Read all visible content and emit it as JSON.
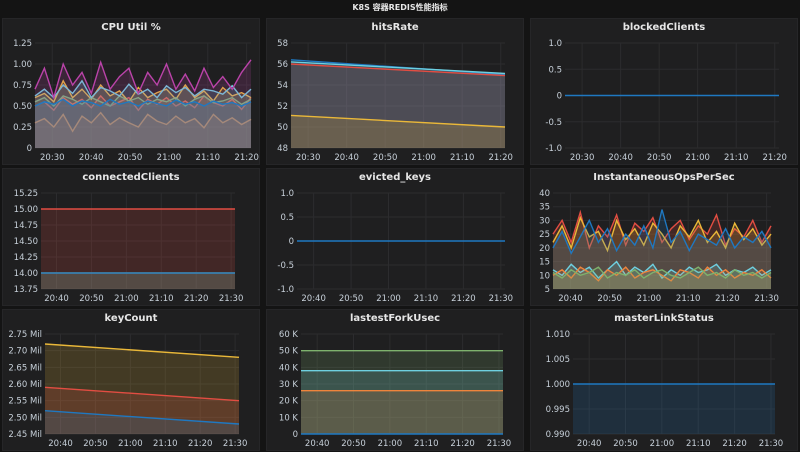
{
  "dashboard": {
    "title": "K8S 容器REDIS性能指标"
  },
  "colors": {
    "grid": "#2c2c2e",
    "panel": "#1f1f20"
  },
  "chart_data": [
    {
      "id": "cpu",
      "type": "line",
      "title": "CPU Util %",
      "ylim": [
        0,
        1.25
      ],
      "yticks": [
        "0",
        "0.25",
        "0.50",
        "0.75",
        "1.00",
        "1.25"
      ],
      "xticks": [
        "20:30",
        "20:40",
        "20:50",
        "21:00",
        "21:10",
        "21:20"
      ],
      "fill": true,
      "series": [
        {
          "color": "#e24d42",
          "values": [
            0.5,
            0.55,
            0.45,
            0.6,
            0.52,
            0.58,
            0.48,
            0.62,
            0.5,
            0.55,
            0.6,
            0.45,
            0.58,
            0.52,
            0.6,
            0.5,
            0.56,
            0.48,
            0.62,
            0.54,
            0.5,
            0.58,
            0.46,
            0.6
          ]
        },
        {
          "color": "#ef843c",
          "values": [
            0.3,
            0.35,
            0.25,
            0.4,
            0.2,
            0.38,
            0.3,
            0.42,
            0.28,
            0.36,
            0.3,
            0.25,
            0.4,
            0.32,
            0.28,
            0.38,
            0.3,
            0.35,
            0.24,
            0.4,
            0.3,
            0.36,
            0.28,
            0.34
          ]
        },
        {
          "color": "#eab839",
          "values": [
            0.6,
            0.65,
            0.55,
            0.8,
            0.6,
            0.7,
            0.58,
            0.75,
            0.62,
            0.68,
            0.55,
            0.72,
            0.6,
            0.66,
            0.7,
            0.58,
            0.75,
            0.6,
            0.68,
            0.56,
            0.72,
            0.62,
            0.66,
            0.6
          ]
        },
        {
          "color": "#7eb26d",
          "values": [
            0.55,
            0.6,
            0.5,
            0.62,
            0.58,
            0.52,
            0.6,
            0.55,
            0.5,
            0.62,
            0.56,
            0.6,
            0.52,
            0.58,
            0.55,
            0.6,
            0.5,
            0.58,
            0.62,
            0.54,
            0.56,
            0.6,
            0.52,
            0.58
          ]
        },
        {
          "color": "#6ed0e0",
          "values": [
            0.62,
            0.7,
            0.6,
            0.75,
            0.65,
            0.8,
            0.6,
            0.72,
            0.68,
            0.62,
            0.76,
            0.64,
            0.7,
            0.6,
            0.74,
            0.66,
            0.72,
            0.62,
            0.7,
            0.68,
            0.64,
            0.74,
            0.6,
            0.7
          ]
        },
        {
          "color": "#ba43a9",
          "values": [
            0.7,
            0.95,
            0.6,
            1.0,
            0.75,
            0.9,
            0.65,
            1.02,
            0.7,
            0.85,
            0.95,
            0.65,
            0.9,
            0.75,
            1.0,
            0.7,
            0.88,
            0.68,
            0.95,
            0.72,
            0.85,
            0.7,
            0.9,
            1.05
          ]
        },
        {
          "color": "#1f78c1",
          "values": [
            0.5,
            0.55,
            0.52,
            0.58,
            0.5,
            0.56,
            0.54,
            0.5,
            0.58,
            0.52,
            0.55,
            0.5,
            0.56,
            0.53,
            0.5,
            0.57,
            0.52,
            0.55,
            0.5,
            0.56,
            0.52,
            0.54,
            0.5,
            0.55
          ]
        }
      ]
    },
    {
      "id": "hits",
      "type": "line",
      "title": "hitsRate",
      "ylim": [
        48,
        58
      ],
      "yticks": [
        "48",
        "50",
        "52",
        "54",
        "56",
        "58"
      ],
      "xticks": [
        "20:30",
        "20:40",
        "20:50",
        "21:00",
        "21:10",
        "21:20"
      ],
      "fill": true,
      "series": [
        {
          "color": "#1f78c1",
          "values": [
            56.4,
            55.0
          ]
        },
        {
          "color": "#6ed0e0",
          "values": [
            56.2,
            55.1
          ]
        },
        {
          "color": "#e24d42",
          "values": [
            56.0,
            54.9
          ]
        },
        {
          "color": "#eab839",
          "values": [
            51.1,
            50.0
          ]
        }
      ]
    },
    {
      "id": "blocked",
      "type": "line",
      "title": "blockedClients",
      "ylim": [
        -1,
        1
      ],
      "yticks": [
        "-1.0",
        "-0.5",
        "0",
        "0.5",
        "1.0"
      ],
      "xticks": [
        "20:30",
        "20:40",
        "20:50",
        "21:00",
        "21:10",
        "21:20"
      ],
      "fill": false,
      "series": [
        {
          "color": "#1f78c1",
          "values": [
            0,
            0
          ]
        }
      ]
    },
    {
      "id": "connected",
      "type": "line",
      "title": "connectedClients",
      "ylim": [
        13.75,
        15.25
      ],
      "yticks": [
        "13.75",
        "14.00",
        "14.25",
        "14.50",
        "14.75",
        "15.00",
        "15.25"
      ],
      "xticks": [
        "20:40",
        "20:50",
        "21:00",
        "21:10",
        "21:20",
        "21:30"
      ],
      "fill": true,
      "series": [
        {
          "color": "#e24d42",
          "values": [
            15,
            15
          ]
        },
        {
          "color": "#eab839",
          "values": [
            14,
            14
          ]
        },
        {
          "color": "#1f78c1",
          "values": [
            14,
            14
          ]
        }
      ]
    },
    {
      "id": "evicted",
      "type": "line",
      "title": "evicted_keys",
      "ylim": [
        -1,
        1
      ],
      "yticks": [
        "-1.0",
        "-0.5",
        "0",
        "0.5",
        "1.0"
      ],
      "xticks": [
        "20:40",
        "20:50",
        "21:00",
        "21:10",
        "21:20",
        "21:30"
      ],
      "fill": false,
      "series": [
        {
          "color": "#1f78c1",
          "values": [
            0,
            0
          ]
        }
      ]
    },
    {
      "id": "ops",
      "type": "line",
      "title": "InstantaneousOpsPerSec",
      "ylim": [
        5,
        40
      ],
      "yticks": [
        "5",
        "10",
        "15",
        "20",
        "25",
        "30",
        "35",
        "40"
      ],
      "xticks": [
        "20:40",
        "20:50",
        "21:00",
        "21:10",
        "21:20",
        "21:30"
      ],
      "fill": true,
      "series": [
        {
          "color": "#e24d42",
          "values": [
            25,
            30,
            22,
            33,
            20,
            28,
            24,
            32,
            21,
            29,
            26,
            31,
            22,
            27,
            30,
            23,
            28,
            25,
            32,
            21,
            27,
            24,
            30,
            22,
            28
          ]
        },
        {
          "color": "#eab839",
          "values": [
            22,
            28,
            20,
            31,
            24,
            26,
            19,
            30,
            23,
            27,
            21,
            29,
            25,
            20,
            28,
            24,
            30,
            22,
            26,
            20,
            29,
            23,
            27,
            21,
            25
          ]
        },
        {
          "color": "#1f78c1",
          "values": [
            20,
            26,
            18,
            24,
            30,
            22,
            27,
            19,
            25,
            21,
            28,
            20,
            34,
            22,
            26,
            19,
            25,
            23,
            21,
            27,
            20,
            24,
            22,
            26,
            20
          ]
        },
        {
          "color": "#6ed0e0",
          "values": [
            12,
            10,
            14,
            11,
            13,
            9,
            12,
            15,
            10,
            13,
            11,
            14,
            9,
            12,
            10,
            13,
            11,
            12,
            14,
            10,
            12,
            11,
            13,
            10,
            12
          ]
        },
        {
          "color": "#ef843c",
          "values": [
            10,
            12,
            9,
            13,
            11,
            8,
            12,
            10,
            13,
            9,
            11,
            12,
            10,
            8,
            12,
            11,
            9,
            13,
            10,
            12,
            9,
            11,
            10,
            12,
            9
          ]
        },
        {
          "color": "#7eb26d",
          "values": [
            11,
            9,
            12,
            10,
            11,
            13,
            9,
            11,
            10,
            12,
            9,
            11,
            12,
            10,
            9,
            11,
            13,
            10,
            11,
            9,
            12,
            10,
            11,
            9,
            11
          ]
        }
      ]
    },
    {
      "id": "keys",
      "type": "line",
      "title": "keyCount",
      "ylim": [
        2.45,
        2.75
      ],
      "yticks": [
        "2.45 Mil",
        "2.50 Mil",
        "2.55 Mil",
        "2.60 Mil",
        "2.65 Mil",
        "2.70 Mil",
        "2.75 Mil"
      ],
      "xticks": [
        "20:40",
        "20:50",
        "21:00",
        "21:10",
        "21:20",
        "21:30"
      ],
      "fill": true,
      "series": [
        {
          "color": "#eab839",
          "values": [
            2.72,
            2.68
          ]
        },
        {
          "color": "#e24d42",
          "values": [
            2.59,
            2.55
          ]
        },
        {
          "color": "#1f78c1",
          "values": [
            2.52,
            2.48
          ]
        }
      ]
    },
    {
      "id": "fork",
      "type": "line",
      "title": "lastestForkUsec",
      "ylim": [
        0,
        60000
      ],
      "yticks": [
        "0",
        "10 K",
        "20 K",
        "30 K",
        "40 K",
        "50 K",
        "60 K"
      ],
      "xticks": [
        "20:40",
        "20:50",
        "21:00",
        "21:10",
        "21:20",
        "21:30"
      ],
      "fill": true,
      "series": [
        {
          "color": "#7eb26d",
          "values": [
            50000,
            50000
          ]
        },
        {
          "color": "#6ed0e0",
          "values": [
            38000,
            38000
          ]
        },
        {
          "color": "#ef843c",
          "values": [
            26000,
            26000
          ]
        },
        {
          "color": "#1f78c1",
          "values": [
            0,
            0
          ]
        }
      ]
    },
    {
      "id": "master",
      "type": "line",
      "title": "masterLinkStatus",
      "ylim": [
        0.99,
        1.01
      ],
      "yticks": [
        "0.990",
        "0.995",
        "1.000",
        "1.005",
        "1.010"
      ],
      "xticks": [
        "20:40",
        "20:50",
        "21:00",
        "21:10",
        "21:20",
        "21:30"
      ],
      "fill": true,
      "series": [
        {
          "color": "#1f78c1",
          "values": [
            1,
            1
          ]
        }
      ]
    }
  ]
}
